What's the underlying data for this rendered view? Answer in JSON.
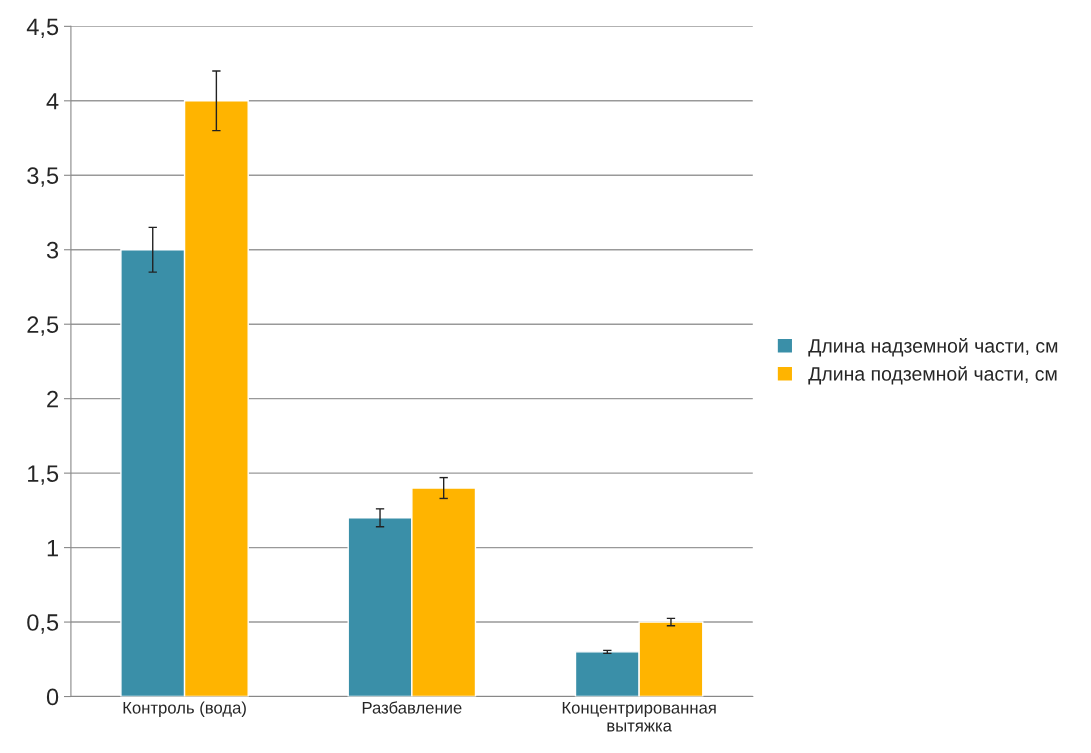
{
  "chart_data": {
    "type": "bar",
    "categories": [
      "Контроль (вода)",
      "Разбавление",
      "Концентрированная\nвытяжка"
    ],
    "series": [
      {
        "name": "Длина надземной части, см",
        "color": "#3a8fa8",
        "values": [
          3,
          1.2,
          0.3
        ],
        "errors": [
          0.15,
          0.06,
          0.01
        ]
      },
      {
        "name": "Длина подземной части, см",
        "color": "#ffb400",
        "values": [
          4,
          1.4,
          0.5
        ],
        "errors": [
          0.2,
          0.07,
          0.025
        ]
      }
    ],
    "ylim": [
      0,
      4.5
    ],
    "yticks": [
      0,
      {
        "value": 0.5,
        "label": "0,5"
      },
      1,
      {
        "value": 1.5,
        "label": "1,5"
      },
      2,
      {
        "value": 2.5,
        "label": "2,5"
      },
      3,
      {
        "value": 3.5,
        "label": "3,5"
      },
      4,
      {
        "value": 4.5,
        "label": "4,5"
      }
    ],
    "grid": "y",
    "legend": "right"
  }
}
